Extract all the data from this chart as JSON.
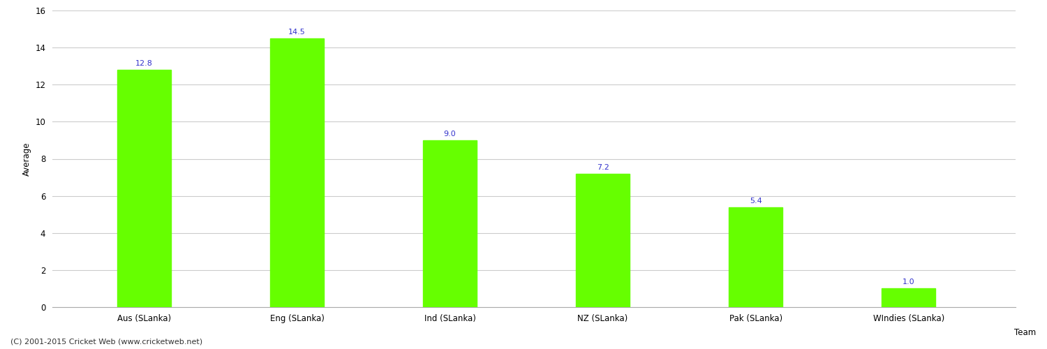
{
  "categories": [
    "Aus (SLanka)",
    "Eng (SLanka)",
    "Ind (SLanka)",
    "NZ (SLanka)",
    "Pak (SLanka)",
    "WIndies (SLanka)"
  ],
  "values": [
    12.8,
    14.5,
    9.0,
    7.2,
    5.4,
    1.0
  ],
  "bar_color": "#66ff00",
  "label_color": "#3333cc",
  "ylabel": "Average",
  "xlabel": "Team",
  "ylim": [
    0,
    16
  ],
  "yticks": [
    0,
    2,
    4,
    6,
    8,
    10,
    12,
    14,
    16
  ],
  "grid_color": "#cccccc",
  "background_color": "#ffffff",
  "footer_text": "(C) 2001-2015 Cricket Web (www.cricketweb.net)",
  "label_fontsize": 8,
  "axis_fontsize": 8.5,
  "footer_fontsize": 8,
  "bar_width": 0.35
}
